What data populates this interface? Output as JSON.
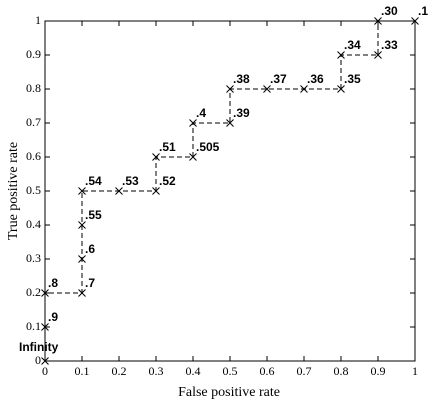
{
  "chart_data": {
    "type": "line",
    "x_label": "False positive rate",
    "y_label": "True positive rate",
    "x": [
      0,
      0,
      0,
      0.1,
      0.1,
      0.1,
      0.1,
      0.2,
      0.3,
      0.3,
      0.4,
      0.4,
      0.5,
      0.5,
      0.6,
      0.7,
      0.8,
      0.8,
      0.9,
      0.9,
      1
    ],
    "values": [
      0,
      0.1,
      0.2,
      0.2,
      0.3,
      0.4,
      0.5,
      0.5,
      0.5,
      0.6,
      0.6,
      0.7,
      0.7,
      0.8,
      0.8,
      0.8,
      0.8,
      0.9,
      0.9,
      1,
      1
    ],
    "point_labels": [
      "Infinity",
      ".9",
      ".8",
      ".7",
      ".6",
      ".55",
      ".54",
      ".53",
      ".52",
      ".51",
      ".505",
      ".4",
      ".39",
      ".38",
      ".37",
      ".36",
      ".35",
      ".34",
      ".33",
      ".30",
      ".1"
    ],
    "color": "#000000",
    "line_style": "dashed",
    "marker": "x",
    "xlim": [
      0,
      1
    ],
    "ylim": [
      0,
      1
    ],
    "xticks": [
      0,
      0.1,
      0.2,
      0.3,
      0.4,
      0.5,
      0.6,
      0.7,
      0.8,
      0.9,
      1
    ],
    "yticks": [
      0,
      0.1,
      0.2,
      0.3,
      0.4,
      0.5,
      0.6,
      0.7,
      0.8,
      0.9,
      1
    ],
    "grid": false
  }
}
